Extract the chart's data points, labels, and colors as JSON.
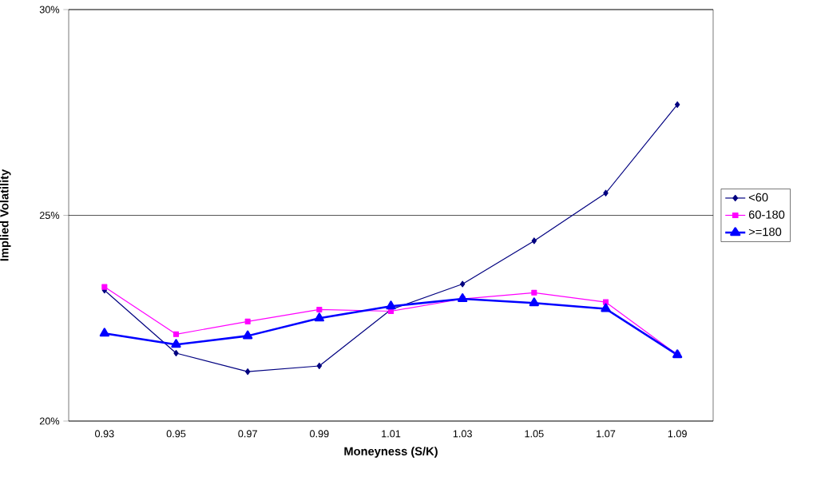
{
  "chart_data": {
    "type": "line",
    "xlabel": "Moneyness (S/K)",
    "ylabel": "Implied Volatility",
    "categories": [
      "0.93",
      "0.95",
      "0.97",
      "0.99",
      "1.01",
      "1.03",
      "1.05",
      "1.07",
      "1.09"
    ],
    "ylim": [
      20,
      30
    ],
    "yticks": [
      {
        "value": 20,
        "label": "20%"
      },
      {
        "value": 25,
        "label": "25%"
      },
      {
        "value": 30,
        "label": "30%"
      }
    ],
    "grid": "y",
    "legend": "right",
    "line_style": "solid",
    "series": [
      {
        "name": "<60",
        "color": "#000080",
        "marker": "diamond",
        "values": [
          23.18,
          21.65,
          21.2,
          21.34,
          22.71,
          23.33,
          24.38,
          25.54,
          27.69
        ]
      },
      {
        "name": "60-180",
        "color": "#ff00ff",
        "marker": "square",
        "values": [
          23.26,
          22.11,
          22.42,
          22.71,
          22.67,
          22.97,
          23.12,
          22.89,
          21.61
        ]
      },
      {
        "name": ">=180",
        "color": "#0000ff",
        "marker": "triangle",
        "values": [
          22.13,
          21.86,
          22.07,
          22.5,
          22.79,
          22.97,
          22.87,
          22.73,
          21.61
        ]
      }
    ]
  }
}
